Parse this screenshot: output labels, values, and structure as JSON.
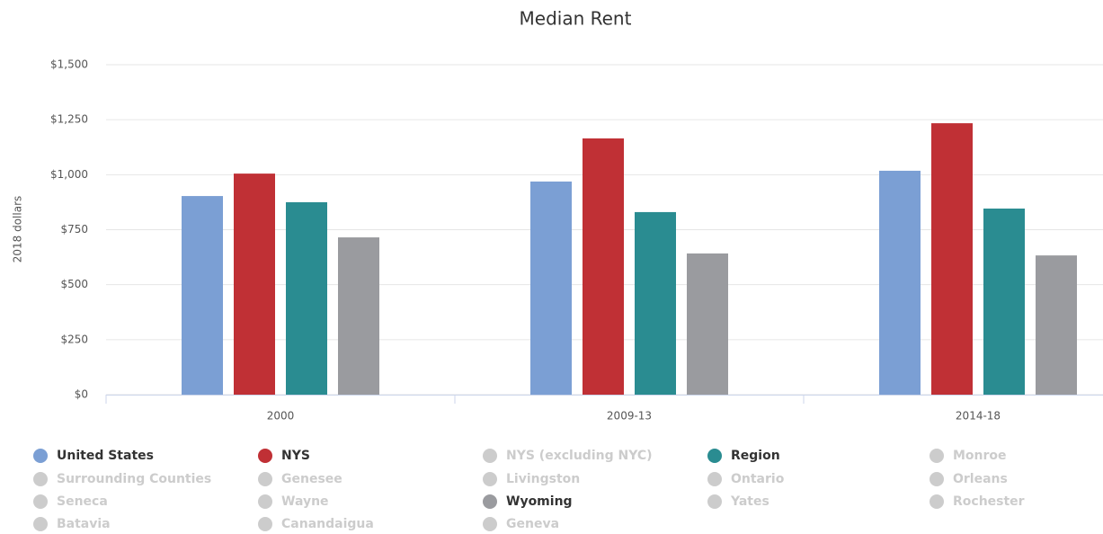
{
  "chart_data": {
    "type": "bar",
    "title": "Median Rent",
    "y_label": "2018 dollars",
    "categories": [
      "2000",
      "2009-13",
      "2014-18"
    ],
    "series": [
      {
        "name": "United States",
        "color": "#7b9fd4",
        "values": [
          903,
          969,
          1018
        ]
      },
      {
        "name": "NYS",
        "color": "#c03035",
        "values": [
          1005,
          1165,
          1234
        ]
      },
      {
        "name": "NYS (excluding NYC)",
        "color": "#cccccc",
        "visible": false,
        "values": [
          null,
          null,
          null
        ]
      },
      {
        "name": "Region",
        "color": "#2a8c91",
        "values": [
          875,
          830,
          846
        ]
      },
      {
        "name": "Monroe",
        "color": "#cccccc",
        "visible": false,
        "values": [
          null,
          null,
          null
        ]
      },
      {
        "name": "Surrounding Counties",
        "color": "#cccccc",
        "visible": false,
        "values": [
          null,
          null,
          null
        ]
      },
      {
        "name": "Genesee",
        "color": "#cccccc",
        "visible": false,
        "values": [
          null,
          null,
          null
        ]
      },
      {
        "name": "Livingston",
        "color": "#cccccc",
        "visible": false,
        "values": [
          null,
          null,
          null
        ]
      },
      {
        "name": "Ontario",
        "color": "#cccccc",
        "visible": false,
        "values": [
          null,
          null,
          null
        ]
      },
      {
        "name": "Orleans",
        "color": "#cccccc",
        "visible": false,
        "values": [
          null,
          null,
          null
        ]
      },
      {
        "name": "Seneca",
        "color": "#cccccc",
        "visible": false,
        "values": [
          null,
          null,
          null
        ]
      },
      {
        "name": "Wayne",
        "color": "#cccccc",
        "visible": false,
        "values": [
          null,
          null,
          null
        ]
      },
      {
        "name": "Wyoming",
        "color": "#9a9b9f",
        "values": [
          715,
          642,
          633
        ]
      },
      {
        "name": "Yates",
        "color": "#cccccc",
        "visible": false,
        "values": [
          null,
          null,
          null
        ]
      },
      {
        "name": "Rochester",
        "color": "#cccccc",
        "visible": false,
        "values": [
          null,
          null,
          null
        ]
      },
      {
        "name": "Batavia",
        "color": "#cccccc",
        "visible": false,
        "values": [
          null,
          null,
          null
        ]
      },
      {
        "name": "Canandaigua",
        "color": "#cccccc",
        "visible": false,
        "values": [
          null,
          null,
          null
        ]
      },
      {
        "name": "Geneva",
        "color": "#cccccc",
        "visible": false,
        "values": [
          null,
          null,
          null
        ]
      }
    ],
    "ylim": [
      0,
      1500
    ],
    "yticks": [
      {
        "value": 0,
        "label": "$0"
      },
      {
        "value": 250,
        "label": "$250"
      },
      {
        "value": 500,
        "label": "$500"
      },
      {
        "value": 750,
        "label": "$750"
      },
      {
        "value": 1000,
        "label": "$1,000"
      },
      {
        "value": 1250,
        "label": "$1,250"
      },
      {
        "value": 1500,
        "label": "$1,500"
      }
    ],
    "grid": true,
    "legend": "bottom"
  }
}
